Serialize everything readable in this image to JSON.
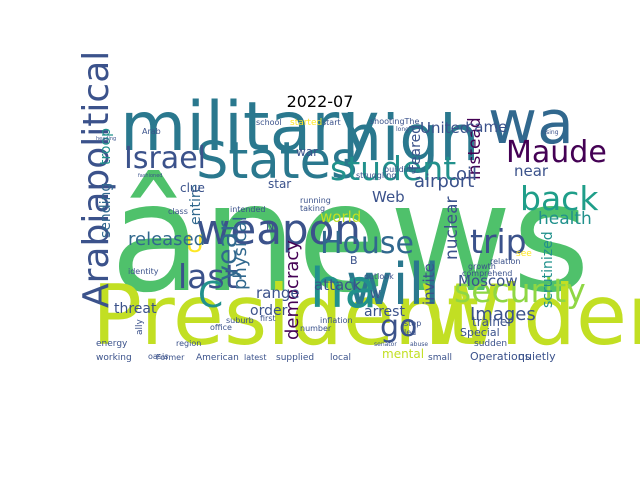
{
  "chart_data": {
    "type": "wordcloud",
    "title": "2022-07",
    "colormap": "viridis",
    "background": "#ffffff",
    "words": [
      {
        "text": "ânews",
        "weight": 1.0,
        "color": "#4fc16b",
        "angle": 0
      },
      {
        "text": "President",
        "weight": 0.55,
        "color": "#c2df23",
        "angle": 0
      },
      {
        "text": "Widen",
        "weight": 0.55,
        "color": "#c2df23",
        "angle": 0
      },
      {
        "text": "military",
        "weight": 0.45,
        "color": "#2a788e",
        "angle": 0
      },
      {
        "text": "high",
        "weight": 0.42,
        "color": "#2a788e",
        "angle": 0
      },
      {
        "text": "wa",
        "weight": 0.4,
        "color": "#31688e",
        "angle": 0
      },
      {
        "text": "will",
        "weight": 0.38,
        "color": "#2a788e",
        "angle": 0
      },
      {
        "text": "ha",
        "weight": 0.36,
        "color": "#21918c",
        "angle": 0
      },
      {
        "text": "States",
        "weight": 0.34,
        "color": "#2a788e",
        "angle": 0
      },
      {
        "text": "weapon",
        "weight": 0.28,
        "color": "#3b528b",
        "angle": 0
      },
      {
        "text": "Arabiapolitical",
        "weight": 0.24,
        "color": "#3b528b",
        "angle": -90
      },
      {
        "text": "student",
        "weight": 0.22,
        "color": "#21918c",
        "angle": 0
      },
      {
        "text": "Israel",
        "weight": 0.2,
        "color": "#3b528b",
        "angle": 0
      },
      {
        "text": "Maude",
        "weight": 0.2,
        "color": "#440154",
        "angle": 0
      },
      {
        "text": "back",
        "weight": 0.22,
        "color": "#1f9e89",
        "angle": 0
      },
      {
        "text": "security",
        "weight": 0.22,
        "color": "#8fd744",
        "angle": 0
      },
      {
        "text": "trip",
        "weight": 0.22,
        "color": "#3b528b",
        "angle": 0
      },
      {
        "text": "House",
        "weight": 0.2,
        "color": "#31688e",
        "angle": 0
      },
      {
        "text": "last",
        "weight": 0.22,
        "color": "#3b528b",
        "angle": 0
      },
      {
        "text": "go",
        "weight": 0.2,
        "color": "#3b528b",
        "angle": 0
      },
      {
        "text": "year",
        "weight": 0.18,
        "color": "#31688e",
        "angle": -90
      },
      {
        "text": "C",
        "weight": 0.24,
        "color": "#21918c",
        "angle": 0
      },
      {
        "text": "U",
        "weight": 0.16,
        "color": "#fde725",
        "angle": 0
      },
      {
        "text": "Images",
        "weight": 0.12,
        "color": "#3b528b",
        "angle": 0
      },
      {
        "text": "health",
        "weight": 0.11,
        "color": "#21918c",
        "angle": 0
      },
      {
        "text": "released",
        "weight": 0.12,
        "color": "#31688e",
        "angle": 0
      },
      {
        "text": "physical",
        "weight": 0.12,
        "color": "#31688e",
        "angle": -90
      },
      {
        "text": "democracy",
        "weight": 0.12,
        "color": "#440154",
        "angle": -90
      },
      {
        "text": "nuclear",
        "weight": 0.11,
        "color": "#3b528b",
        "angle": -90
      },
      {
        "text": "instead",
        "weight": 0.11,
        "color": "#440154",
        "angle": -90
      },
      {
        "text": "United",
        "weight": 0.1,
        "color": "#3b528b",
        "angle": 0
      },
      {
        "text": "came",
        "weight": 0.1,
        "color": "#3b528b",
        "angle": 0
      },
      {
        "text": "near",
        "weight": 0.1,
        "color": "#3b528b",
        "angle": 0
      },
      {
        "text": "airport",
        "weight": 0.12,
        "color": "#3b528b",
        "angle": 0
      },
      {
        "text": "oil",
        "weight": 0.12,
        "color": "#3b528b",
        "angle": 0
      },
      {
        "text": "world",
        "weight": 0.1,
        "color": "#c2df23",
        "angle": 0
      },
      {
        "text": "Web",
        "weight": 0.1,
        "color": "#3b528b",
        "angle": 0
      },
      {
        "text": "invite",
        "weight": 0.1,
        "color": "#3b528b",
        "angle": -90
      },
      {
        "text": "Moscow",
        "weight": 0.1,
        "color": "#3b528b",
        "angle": 0
      },
      {
        "text": "attack",
        "weight": 0.1,
        "color": "#3b528b",
        "angle": 0
      },
      {
        "text": "arrest",
        "weight": 0.09,
        "color": "#3b528b",
        "angle": 0
      },
      {
        "text": "range",
        "weight": 0.1,
        "color": "#3b528b",
        "angle": 0
      },
      {
        "text": "order",
        "weight": 0.09,
        "color": "#3b528b",
        "angle": 0
      },
      {
        "text": "threat",
        "weight": 0.09,
        "color": "#3b528b",
        "angle": 0
      },
      {
        "text": "sending",
        "weight": 0.09,
        "color": "#31688e",
        "angle": -90
      },
      {
        "text": "troop",
        "weight": 0.09,
        "color": "#21918c",
        "angle": -90
      },
      {
        "text": "entire",
        "weight": 0.09,
        "color": "#31688e",
        "angle": -90
      },
      {
        "text": "scrutinized",
        "weight": 0.09,
        "color": "#21918c",
        "angle": -90
      },
      {
        "text": "feared",
        "weight": 0.09,
        "color": "#3b528b",
        "angle": -90
      },
      {
        "text": "war",
        "weight": 0.08,
        "color": "#3b528b",
        "angle": 0
      },
      {
        "text": "star",
        "weight": 0.08,
        "color": "#3b528b",
        "angle": 0
      },
      {
        "text": "clue",
        "weight": 0.08,
        "color": "#3b528b",
        "angle": 0
      },
      {
        "text": "mental",
        "weight": 0.08,
        "color": "#c2df23",
        "angle": 0
      },
      {
        "text": "Special",
        "weight": 0.07,
        "color": "#3b528b",
        "angle": 0
      },
      {
        "text": "trainer",
        "weight": 0.08,
        "color": "#3b528b",
        "angle": 0
      },
      {
        "text": "sudden",
        "weight": 0.06,
        "color": "#3b528b",
        "angle": 0
      },
      {
        "text": "Operations",
        "weight": 0.07,
        "color": "#3b528b",
        "angle": 0
      },
      {
        "text": "quietly",
        "weight": 0.07,
        "color": "#3b528b",
        "angle": 0
      },
      {
        "text": "small",
        "weight": 0.06,
        "color": "#3b528b",
        "angle": 0
      },
      {
        "text": "local",
        "weight": 0.06,
        "color": "#3b528b",
        "angle": 0
      },
      {
        "text": "supplied",
        "weight": 0.06,
        "color": "#3b528b",
        "angle": 0
      },
      {
        "text": "latest",
        "weight": 0.05,
        "color": "#3b528b",
        "angle": 0
      },
      {
        "text": "American",
        "weight": 0.06,
        "color": "#3b528b",
        "angle": 0
      },
      {
        "text": "Former",
        "weight": 0.05,
        "color": "#3b528b",
        "angle": 0
      },
      {
        "text": "working",
        "weight": 0.06,
        "color": "#3b528b",
        "angle": 0
      },
      {
        "text": "energy",
        "weight": 0.06,
        "color": "#3b528b",
        "angle": 0
      },
      {
        "text": "region",
        "weight": 0.05,
        "color": "#3b528b",
        "angle": 0
      },
      {
        "text": "office",
        "weight": 0.05,
        "color": "#3b528b",
        "angle": 0
      },
      {
        "text": "ally",
        "weight": 0.06,
        "color": "#3b528b",
        "angle": -90
      },
      {
        "text": "school",
        "weight": 0.05,
        "color": "#3b528b",
        "angle": 0
      },
      {
        "text": "started",
        "weight": 0.06,
        "color": "#fde725",
        "angle": 0
      },
      {
        "text": "start",
        "weight": 0.05,
        "color": "#3b528b",
        "angle": 0
      },
      {
        "text": "shootingThe",
        "weight": 0.05,
        "color": "#3b528b",
        "angle": 0
      },
      {
        "text": "Arab",
        "weight": 0.05,
        "color": "#3b528b",
        "angle": 0
      },
      {
        "text": "intended",
        "weight": 0.05,
        "color": "#3b528b",
        "angle": 0
      },
      {
        "text": "struggling",
        "weight": 0.05,
        "color": "#3b528b",
        "angle": 0
      },
      {
        "text": "running",
        "weight": 0.05,
        "color": "#3b528b",
        "angle": 0
      },
      {
        "text": "taking",
        "weight": 0.05,
        "color": "#3b528b",
        "angle": 0
      },
      {
        "text": "building",
        "weight": 0.05,
        "color": "#3b528b",
        "angle": 0
      },
      {
        "text": "see",
        "weight": 0.06,
        "color": "#fde725",
        "angle": 0
      },
      {
        "text": "growth",
        "weight": 0.05,
        "color": "#3b528b",
        "angle": 0
      },
      {
        "text": "relation",
        "weight": 0.05,
        "color": "#3b528b",
        "angle": 0
      },
      {
        "text": "comprehend",
        "weight": 0.05,
        "color": "#3b528b",
        "angle": 0
      },
      {
        "text": "outlook",
        "weight": 0.05,
        "color": "#3b528b",
        "angle": 0
      },
      {
        "text": "number",
        "weight": 0.05,
        "color": "#3b528b",
        "angle": 0
      },
      {
        "text": "inflation",
        "weight": 0.05,
        "color": "#3b528b",
        "angle": 0
      },
      {
        "text": "first",
        "weight": 0.05,
        "color": "#3b528b",
        "angle": 0
      },
      {
        "text": "suburb",
        "weight": 0.05,
        "color": "#3b528b",
        "angle": 0
      },
      {
        "text": "class",
        "weight": 0.05,
        "color": "#3b528b",
        "angle": 0
      },
      {
        "text": "identity",
        "weight": 0.05,
        "color": "#3b528b",
        "angle": 0
      },
      {
        "text": "oasis",
        "weight": 0.05,
        "color": "#3b528b",
        "angle": 0
      },
      {
        "text": "stop",
        "weight": 0.05,
        "color": "#3b528b",
        "angle": 0
      },
      {
        "text": "led",
        "weight": 0.05,
        "color": "#3b528b",
        "angle": 0
      },
      {
        "text": "abuse",
        "weight": 0.04,
        "color": "#3b528b",
        "angle": 0
      },
      {
        "text": "senator",
        "weight": 0.04,
        "color": "#3b528b",
        "angle": 0
      },
      {
        "text": "long",
        "weight": 0.04,
        "color": "#3b528b",
        "angle": 0
      },
      {
        "text": "rising",
        "weight": 0.04,
        "color": "#3b528b",
        "angle": 0
      },
      {
        "text": "N",
        "weight": 0.07,
        "color": "#3b528b",
        "angle": 0
      },
      {
        "text": "W",
        "weight": 0.07,
        "color": "#3b528b",
        "angle": 0
      },
      {
        "text": "B",
        "weight": 0.07,
        "color": "#3b528b",
        "angle": 0
      },
      {
        "text": "fashioned",
        "weight": 0.03,
        "color": "#3b528b",
        "angle": 0
      },
      {
        "text": "heading",
        "weight": 0.03,
        "color": "#3b528b",
        "angle": 0
      }
    ]
  }
}
